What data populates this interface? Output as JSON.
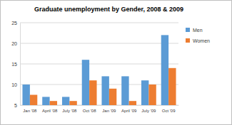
{
  "chart_data": {
    "type": "bar",
    "title": "Graduate unemployment by Gender, 2008 & 2009",
    "categories": [
      "Jan '08",
      "April '08",
      "July '08",
      "Oct '08",
      "Jan '09",
      "April '09",
      "July '09",
      "Oct '09"
    ],
    "series": [
      {
        "name": "Men",
        "color": "#5b9bd5",
        "values": [
          10,
          7,
          7,
          16,
          12,
          12,
          11,
          22
        ]
      },
      {
        "name": "Women",
        "color": "#ed7d31",
        "values": [
          7.5,
          6,
          6,
          11,
          9,
          6,
          10,
          14
        ]
      }
    ],
    "ylim": [
      5,
      25
    ],
    "yticks": [
      5,
      10,
      15,
      20,
      25
    ],
    "grid": true,
    "legend": "right"
  }
}
